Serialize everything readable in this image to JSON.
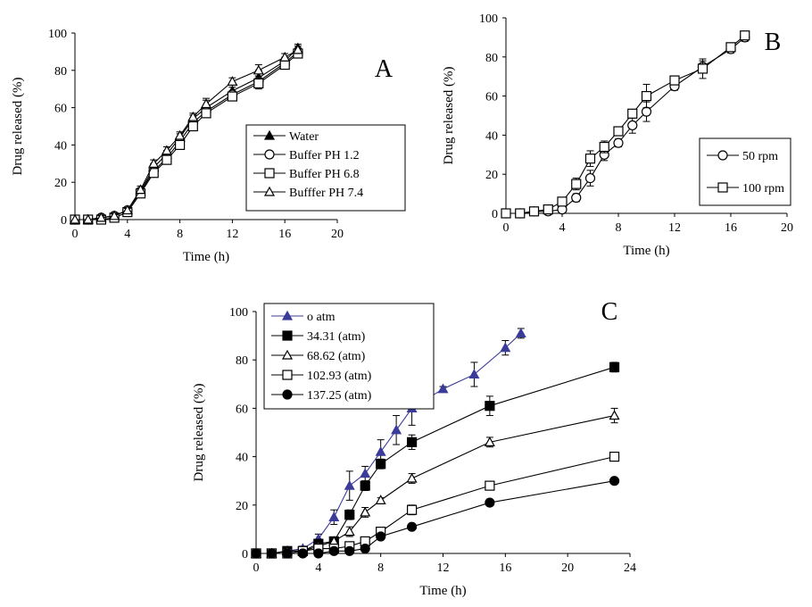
{
  "chart_data": [
    {
      "type": "line",
      "title": "",
      "panel_label": "A",
      "xlabel": "Time  (h)",
      "ylabel": "Drug released (%)",
      "xlim": [
        0,
        20
      ],
      "ylim": [
        0,
        100
      ],
      "xticks": [
        0,
        4,
        8,
        12,
        16,
        20
      ],
      "yticks": [
        0,
        20,
        40,
        60,
        80,
        100
      ],
      "grid": false,
      "legend_position": "bottom-right",
      "series": [
        {
          "name": "Water",
          "marker": "triangle-filled",
          "color": "#000000",
          "x": [
            0,
            1,
            2,
            3,
            4,
            5,
            6,
            7,
            8,
            9,
            10,
            12,
            14,
            16,
            17
          ],
          "y": [
            0,
            0,
            1,
            2,
            5,
            15,
            28,
            35,
            44,
            54,
            60,
            69,
            76,
            85,
            92
          ],
          "err": [
            0,
            0,
            1,
            1,
            1,
            2,
            2,
            2,
            2,
            2,
            5,
            2,
            4,
            2,
            2
          ]
        },
        {
          "name": "Buffer PH 1.2",
          "marker": "circle-open",
          "color": "#000000",
          "x": [
            0,
            1,
            2,
            3,
            4,
            5,
            6,
            7,
            8,
            9,
            10,
            12,
            14,
            16,
            17
          ],
          "y": [
            0,
            0,
            1,
            2,
            5,
            15,
            26,
            33,
            42,
            52,
            58,
            67,
            74,
            84,
            90
          ],
          "err": [
            0,
            0,
            1,
            1,
            1,
            2,
            2,
            2,
            2,
            2,
            2,
            2,
            3,
            2,
            2
          ]
        },
        {
          "name": "Buffer PH 6.8",
          "marker": "square-open",
          "color": "#000000",
          "x": [
            0,
            1,
            2,
            3,
            4,
            5,
            6,
            7,
            8,
            9,
            10,
            12,
            14,
            16,
            17
          ],
          "y": [
            0,
            0,
            0,
            1,
            4,
            14,
            25,
            32,
            40,
            50,
            57,
            66,
            73,
            83,
            89
          ],
          "err": [
            0,
            0,
            1,
            1,
            1,
            2,
            2,
            2,
            2,
            2,
            2,
            2,
            3,
            2,
            2
          ]
        },
        {
          "name": "Bufffer PH 7.4",
          "marker": "triangle-open",
          "color": "#000000",
          "x": [
            0,
            1,
            2,
            3,
            4,
            5,
            6,
            7,
            8,
            9,
            10,
            12,
            14,
            16,
            17
          ],
          "y": [
            0,
            0,
            1,
            2,
            5,
            16,
            30,
            37,
            45,
            55,
            62,
            74,
            80,
            87,
            91
          ],
          "err": [
            0,
            0,
            1,
            1,
            1,
            2,
            2,
            2,
            2,
            2,
            2,
            2,
            3,
            2,
            2
          ]
        }
      ]
    },
    {
      "type": "line",
      "title": "",
      "panel_label": "B",
      "xlabel": "Time  (h)",
      "ylabel": "Drug released (%)",
      "xlim": [
        0,
        20
      ],
      "ylim": [
        0,
        100
      ],
      "xticks": [
        0,
        4,
        8,
        12,
        16,
        20
      ],
      "yticks": [
        0,
        20,
        40,
        60,
        80,
        100
      ],
      "grid": false,
      "legend_position": "right",
      "series": [
        {
          "name": "50 rpm",
          "marker": "circle-open",
          "color": "#000000",
          "x": [
            0,
            1,
            2,
            3,
            4,
            5,
            6,
            7,
            8,
            9,
            10,
            12,
            14,
            16,
            17
          ],
          "y": [
            0,
            0,
            1,
            1,
            2,
            8,
            18,
            30,
            36,
            45,
            52,
            65,
            75,
            84,
            90
          ],
          "err": [
            0,
            0,
            0,
            0,
            1,
            2,
            4,
            3,
            2,
            4,
            5,
            2,
            3,
            2,
            2
          ]
        },
        {
          "name": "100 rpm",
          "marker": "square-open",
          "color": "#000000",
          "x": [
            0,
            1,
            2,
            3,
            4,
            5,
            6,
            7,
            8,
            9,
            10,
            12,
            14,
            16,
            17
          ],
          "y": [
            0,
            0,
            1,
            2,
            6,
            15,
            28,
            34,
            42,
            51,
            60,
            68,
            74,
            85,
            91
          ],
          "err": [
            0,
            0,
            0,
            0,
            1,
            3,
            4,
            3,
            2,
            2,
            6,
            2,
            5,
            2,
            2
          ]
        }
      ]
    },
    {
      "type": "line",
      "title": "",
      "panel_label": "C",
      "xlabel": "Time  (h)",
      "ylabel": "Drug released (%)",
      "xlim": [
        0,
        24
      ],
      "ylim": [
        0,
        100
      ],
      "xticks": [
        0,
        4,
        8,
        12,
        16,
        20,
        24
      ],
      "yticks": [
        0,
        20,
        40,
        60,
        80,
        100
      ],
      "grid": false,
      "legend_position": "top-left",
      "series": [
        {
          "name": "o atm",
          "marker": "triangle-filled",
          "color": "#3b3b9a",
          "x": [
            0,
            1,
            2,
            3,
            4,
            5,
            6,
            7,
            8,
            9,
            10,
            12,
            14,
            16,
            17
          ],
          "y": [
            0,
            0,
            1,
            2,
            6,
            15,
            28,
            33,
            42,
            51,
            60,
            68,
            74,
            85,
            91
          ],
          "err": [
            0,
            0,
            0,
            1,
            2,
            3,
            6,
            3,
            5,
            6,
            7,
            1,
            5,
            3,
            2
          ]
        },
        {
          "name": "34.31 (atm)",
          "marker": "square-filled",
          "color": "#000000",
          "x": [
            0,
            1,
            2,
            3,
            4,
            5,
            6,
            7,
            8,
            10,
            15,
            23
          ],
          "y": [
            0,
            0,
            1,
            1,
            4,
            5,
            16,
            28,
            37,
            46,
            61,
            77
          ],
          "err": [
            0,
            0,
            0,
            0,
            1,
            1,
            2,
            2,
            2,
            3,
            4,
            2
          ]
        },
        {
          "name": "68.62 (atm)",
          "marker": "triangle-open",
          "color": "#000000",
          "x": [
            0,
            1,
            2,
            3,
            4,
            5,
            6,
            7,
            8,
            10,
            15,
            23
          ],
          "y": [
            0,
            0,
            1,
            1,
            3,
            5,
            9,
            17,
            22,
            31,
            46,
            57
          ],
          "err": [
            0,
            0,
            0,
            0,
            1,
            1,
            2,
            2,
            1,
            2,
            2,
            3
          ]
        },
        {
          "name": "102.93 (atm)",
          "marker": "square-open",
          "color": "#000000",
          "x": [
            0,
            1,
            2,
            3,
            4,
            5,
            6,
            7,
            8,
            10,
            15,
            23
          ],
          "y": [
            0,
            0,
            0,
            1,
            2,
            2,
            3,
            5,
            9,
            18,
            28,
            40
          ],
          "err": [
            0,
            0,
            0,
            0,
            0,
            0,
            1,
            1,
            1,
            2,
            1,
            1
          ]
        },
        {
          "name": "137.25 (atm)",
          "marker": "circle-filled",
          "color": "#000000",
          "x": [
            0,
            1,
            2,
            3,
            4,
            5,
            6,
            7,
            8,
            10,
            15,
            23
          ],
          "y": [
            0,
            0,
            0,
            0,
            0,
            1,
            1,
            2,
            7,
            11,
            21,
            30
          ],
          "err": [
            0,
            0,
            0,
            0,
            0,
            0,
            0,
            0,
            1,
            1,
            1,
            1
          ]
        }
      ]
    }
  ]
}
